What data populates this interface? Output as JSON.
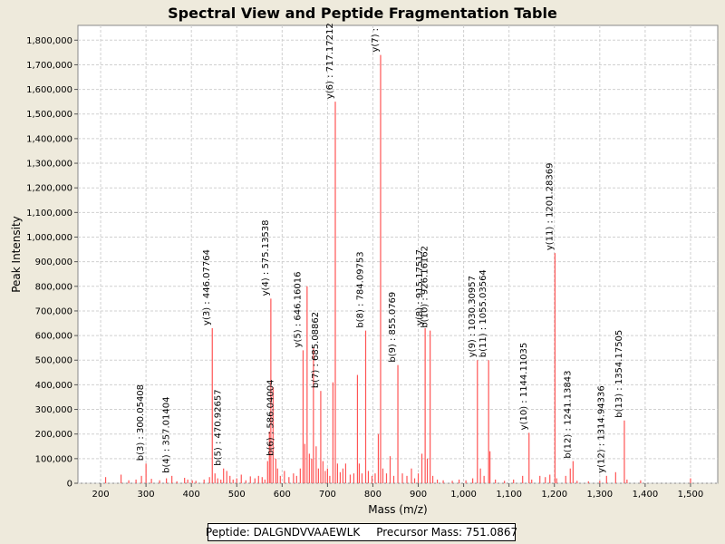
{
  "chart_data": {
    "type": "bar",
    "title": "Spectral View and Peptide Fragmentation Table",
    "xlabel": "Mass (m/z)",
    "ylabel": "Peak Intensity",
    "xlim": [
      150,
      1560
    ],
    "ylim": [
      0,
      1860000
    ],
    "x_ticks": [
      200,
      300,
      400,
      500,
      600,
      700,
      800,
      900,
      1000,
      1100,
      1200,
      1300,
      1400,
      1500
    ],
    "x_tick_labels": [
      "200",
      "300",
      "400",
      "500",
      "600",
      "700",
      "800",
      "900",
      "1,000",
      "1,100",
      "1,200",
      "1,300",
      "1,400",
      "1,500"
    ],
    "y_ticks": [
      0,
      100000,
      200000,
      300000,
      400000,
      500000,
      600000,
      700000,
      800000,
      900000,
      1000000,
      1100000,
      1200000,
      1300000,
      1400000,
      1500000,
      1600000,
      1700000,
      1800000
    ],
    "y_tick_labels": [
      "0",
      "100,000",
      "200,000",
      "300,000",
      "400,000",
      "500,000",
      "600,000",
      "700,000",
      "800,000",
      "900,000",
      "1,000,000",
      "1,100,000",
      "1,200,000",
      "1,300,000",
      "1,400,000",
      "1,500,000",
      "1,600,000",
      "1,700,000",
      "1,800,000"
    ],
    "grid": true,
    "peak_color": "#ff5555",
    "peaks": [
      {
        "x": 211,
        "y": 25000
      },
      {
        "x": 245,
        "y": 35000
      },
      {
        "x": 262,
        "y": 12000
      },
      {
        "x": 278,
        "y": 15000
      },
      {
        "x": 290,
        "y": 30000
      },
      {
        "x": 300.05,
        "y": 80000
      },
      {
        "x": 312,
        "y": 18000
      },
      {
        "x": 330,
        "y": 12000
      },
      {
        "x": 345,
        "y": 20000
      },
      {
        "x": 357.01,
        "y": 30000
      },
      {
        "x": 368,
        "y": 8000
      },
      {
        "x": 385,
        "y": 22000
      },
      {
        "x": 392,
        "y": 15000
      },
      {
        "x": 402,
        "y": 12000
      },
      {
        "x": 410,
        "y": 10000
      },
      {
        "x": 428,
        "y": 15000
      },
      {
        "x": 440,
        "y": 25000
      },
      {
        "x": 446.08,
        "y": 630000
      },
      {
        "x": 452,
        "y": 40000
      },
      {
        "x": 458,
        "y": 20000
      },
      {
        "x": 465,
        "y": 15000
      },
      {
        "x": 470.93,
        "y": 60000
      },
      {
        "x": 478,
        "y": 50000
      },
      {
        "x": 485,
        "y": 30000
      },
      {
        "x": 492,
        "y": 15000
      },
      {
        "x": 500,
        "y": 20000
      },
      {
        "x": 510,
        "y": 35000
      },
      {
        "x": 520,
        "y": 12000
      },
      {
        "x": 530,
        "y": 28000
      },
      {
        "x": 540,
        "y": 20000
      },
      {
        "x": 548,
        "y": 30000
      },
      {
        "x": 556,
        "y": 25000
      },
      {
        "x": 562,
        "y": 15000
      },
      {
        "x": 568,
        "y": 90000
      },
      {
        "x": 572,
        "y": 210000
      },
      {
        "x": 575.14,
        "y": 750000
      },
      {
        "x": 580,
        "y": 390000
      },
      {
        "x": 586.04,
        "y": 100000
      },
      {
        "x": 590,
        "y": 60000
      },
      {
        "x": 596,
        "y": 30000
      },
      {
        "x": 605,
        "y": 50000
      },
      {
        "x": 615,
        "y": 25000
      },
      {
        "x": 625,
        "y": 40000
      },
      {
        "x": 632,
        "y": 30000
      },
      {
        "x": 640,
        "y": 60000
      },
      {
        "x": 646.16,
        "y": 540000
      },
      {
        "x": 650,
        "y": 160000
      },
      {
        "x": 655,
        "y": 800000
      },
      {
        "x": 660,
        "y": 120000
      },
      {
        "x": 665,
        "y": 100000
      },
      {
        "x": 669,
        "y": 550000
      },
      {
        "x": 675,
        "y": 150000
      },
      {
        "x": 680,
        "y": 60000
      },
      {
        "x": 685.09,
        "y": 375000
      },
      {
        "x": 690,
        "y": 90000
      },
      {
        "x": 695,
        "y": 50000
      },
      {
        "x": 700,
        "y": 60000
      },
      {
        "x": 705,
        "y": 30000
      },
      {
        "x": 712,
        "y": 410000
      },
      {
        "x": 717.17,
        "y": 1550000
      },
      {
        "x": 722,
        "y": 80000
      },
      {
        "x": 728,
        "y": 45000
      },
      {
        "x": 734,
        "y": 60000
      },
      {
        "x": 740,
        "y": 80000
      },
      {
        "x": 750,
        "y": 35000
      },
      {
        "x": 758,
        "y": 40000
      },
      {
        "x": 766,
        "y": 440000
      },
      {
        "x": 770,
        "y": 80000
      },
      {
        "x": 776,
        "y": 40000
      },
      {
        "x": 784.1,
        "y": 620000
      },
      {
        "x": 790,
        "y": 50000
      },
      {
        "x": 798,
        "y": 30000
      },
      {
        "x": 805,
        "y": 40000
      },
      {
        "x": 812,
        "y": 200000
      },
      {
        "x": 817,
        "y": 1740000
      },
      {
        "x": 822,
        "y": 60000
      },
      {
        "x": 830,
        "y": 40000
      },
      {
        "x": 838,
        "y": 110000
      },
      {
        "x": 846,
        "y": 30000
      },
      {
        "x": 855.08,
        "y": 480000
      },
      {
        "x": 865,
        "y": 40000
      },
      {
        "x": 875,
        "y": 30000
      },
      {
        "x": 885,
        "y": 60000
      },
      {
        "x": 892,
        "y": 20000
      },
      {
        "x": 900,
        "y": 40000
      },
      {
        "x": 908,
        "y": 120000
      },
      {
        "x": 915.18,
        "y": 630000
      },
      {
        "x": 920,
        "y": 100000
      },
      {
        "x": 926.16,
        "y": 620000
      },
      {
        "x": 932,
        "y": 30000
      },
      {
        "x": 942,
        "y": 15000
      },
      {
        "x": 955,
        "y": 12000
      },
      {
        "x": 975,
        "y": 10000
      },
      {
        "x": 990,
        "y": 15000
      },
      {
        "x": 1005,
        "y": 12000
      },
      {
        "x": 1020,
        "y": 20000
      },
      {
        "x": 1030.31,
        "y": 500000
      },
      {
        "x": 1037,
        "y": 60000
      },
      {
        "x": 1045,
        "y": 30000
      },
      {
        "x": 1055.04,
        "y": 500000
      },
      {
        "x": 1058,
        "y": 130000
      },
      {
        "x": 1070,
        "y": 15000
      },
      {
        "x": 1090,
        "y": 10000
      },
      {
        "x": 1110,
        "y": 15000
      },
      {
        "x": 1130,
        "y": 30000
      },
      {
        "x": 1144.11,
        "y": 205000
      },
      {
        "x": 1150,
        "y": 15000
      },
      {
        "x": 1168,
        "y": 30000
      },
      {
        "x": 1180,
        "y": 25000
      },
      {
        "x": 1190,
        "y": 35000
      },
      {
        "x": 1201.28,
        "y": 935000
      },
      {
        "x": 1205,
        "y": 20000
      },
      {
        "x": 1225,
        "y": 30000
      },
      {
        "x": 1235,
        "y": 60000
      },
      {
        "x": 1241.14,
        "y": 90000
      },
      {
        "x": 1250,
        "y": 10000
      },
      {
        "x": 1275,
        "y": 8000
      },
      {
        "x": 1300,
        "y": 10000
      },
      {
        "x": 1314.94,
        "y": 30000
      },
      {
        "x": 1335,
        "y": 45000
      },
      {
        "x": 1354.18,
        "y": 255000
      },
      {
        "x": 1360,
        "y": 15000
      },
      {
        "x": 1390,
        "y": 12000
      },
      {
        "x": 1500,
        "y": 20000
      }
    ],
    "annotations": [
      {
        "label": "b(3) : 300.05408",
        "x": 300.05,
        "y": 80000
      },
      {
        "label": "b(4) : 357.01404",
        "x": 357.01,
        "y": 30000
      },
      {
        "label": "y(3) : 446.07764",
        "x": 446.08,
        "y": 630000
      },
      {
        "label": "b(5) : 470.92657",
        "x": 470.93,
        "y": 60000
      },
      {
        "label": "y(4) : 575.13538",
        "x": 575.14,
        "y": 750000
      },
      {
        "label": "b(6) : 586.04004",
        "x": 586.04,
        "y": 100000
      },
      {
        "label": "y(5) : 646.16016",
        "x": 646.16,
        "y": 540000
      },
      {
        "label": "b(7) : 685.08862",
        "x": 685.09,
        "y": 375000
      },
      {
        "label": "y(6) : 717.17212",
        "x": 717.17,
        "y": 1550000
      },
      {
        "label": "y(7) :",
        "x": 817,
        "y": 1740000
      },
      {
        "label": "b(8) : 784.09753",
        "x": 784.1,
        "y": 620000
      },
      {
        "label": "b(9) : 855.0769",
        "x": 855.08,
        "y": 480000
      },
      {
        "label": "y(8) : 915.17517",
        "x": 915.18,
        "y": 630000
      },
      {
        "label": "b(10) : 926.16162",
        "x": 926.16,
        "y": 620000
      },
      {
        "label": "y(9) : 1030.30957",
        "x": 1030.31,
        "y": 500000
      },
      {
        "label": "b(11) : 1055.03564",
        "x": 1055.04,
        "y": 500000
      },
      {
        "label": "y(10) : 1144.11035",
        "x": 1144.11,
        "y": 205000
      },
      {
        "label": "y(11) : 1201.28369",
        "x": 1201.28,
        "y": 935000
      },
      {
        "label": "b(12) : 1241.13843",
        "x": 1241.14,
        "y": 90000
      },
      {
        "label": "y(12) : 1314.94336",
        "x": 1314.94,
        "y": 30000
      },
      {
        "label": "b(13) : 1354.17505",
        "x": 1354.18,
        "y": 255000
      }
    ]
  },
  "info": {
    "peptide": "Peptide: DALGNDVVAAEWLK",
    "precursor": "Precursor Mass: 751.0867"
  }
}
